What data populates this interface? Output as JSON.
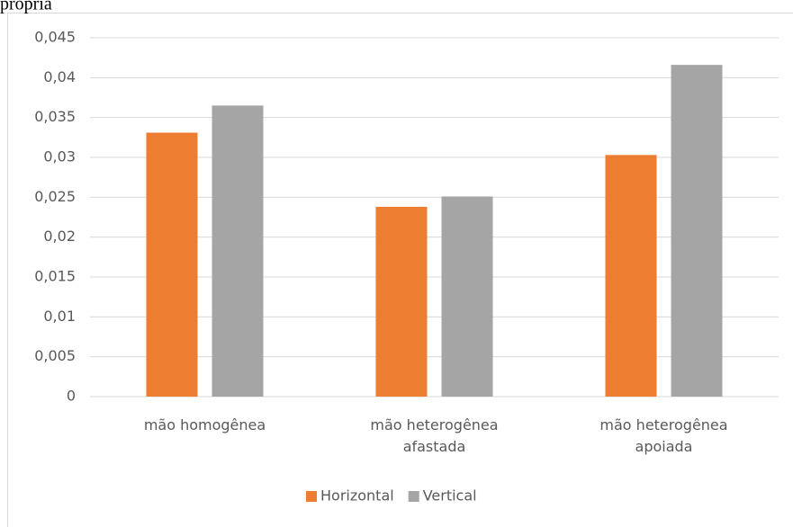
{
  "chart_data": {
    "type": "bar",
    "title": "própria",
    "categories": [
      "mão homogênea",
      "mão heterogênea afastada",
      "mão heterogênea apoiada"
    ],
    "series": [
      {
        "name": "Horizontal",
        "color": "#ed7d31",
        "values": [
          0.0331,
          0.0238,
          0.0303
        ]
      },
      {
        "name": "Vertical",
        "color": "#a5a5a5",
        "values": [
          0.0365,
          0.0251,
          0.0416
        ]
      }
    ],
    "ylim": [
      0,
      0.045
    ],
    "yticks": [
      0,
      {
        "value": 0.005,
        "label": "0,005"
      },
      {
        "value": 0.01,
        "label": "0,01"
      },
      {
        "value": 0.015,
        "label": "0,015"
      },
      {
        "value": 0.02,
        "label": "0,02"
      },
      {
        "value": 0.025,
        "label": "0,025"
      },
      {
        "value": 0.03,
        "label": "0,03"
      },
      {
        "value": 0.035,
        "label": "0,035"
      },
      {
        "value": 0.04,
        "label": "0,04"
      },
      {
        "value": 0.045,
        "label": "0,045"
      }
    ],
    "grid": true,
    "legend": "bottom"
  }
}
